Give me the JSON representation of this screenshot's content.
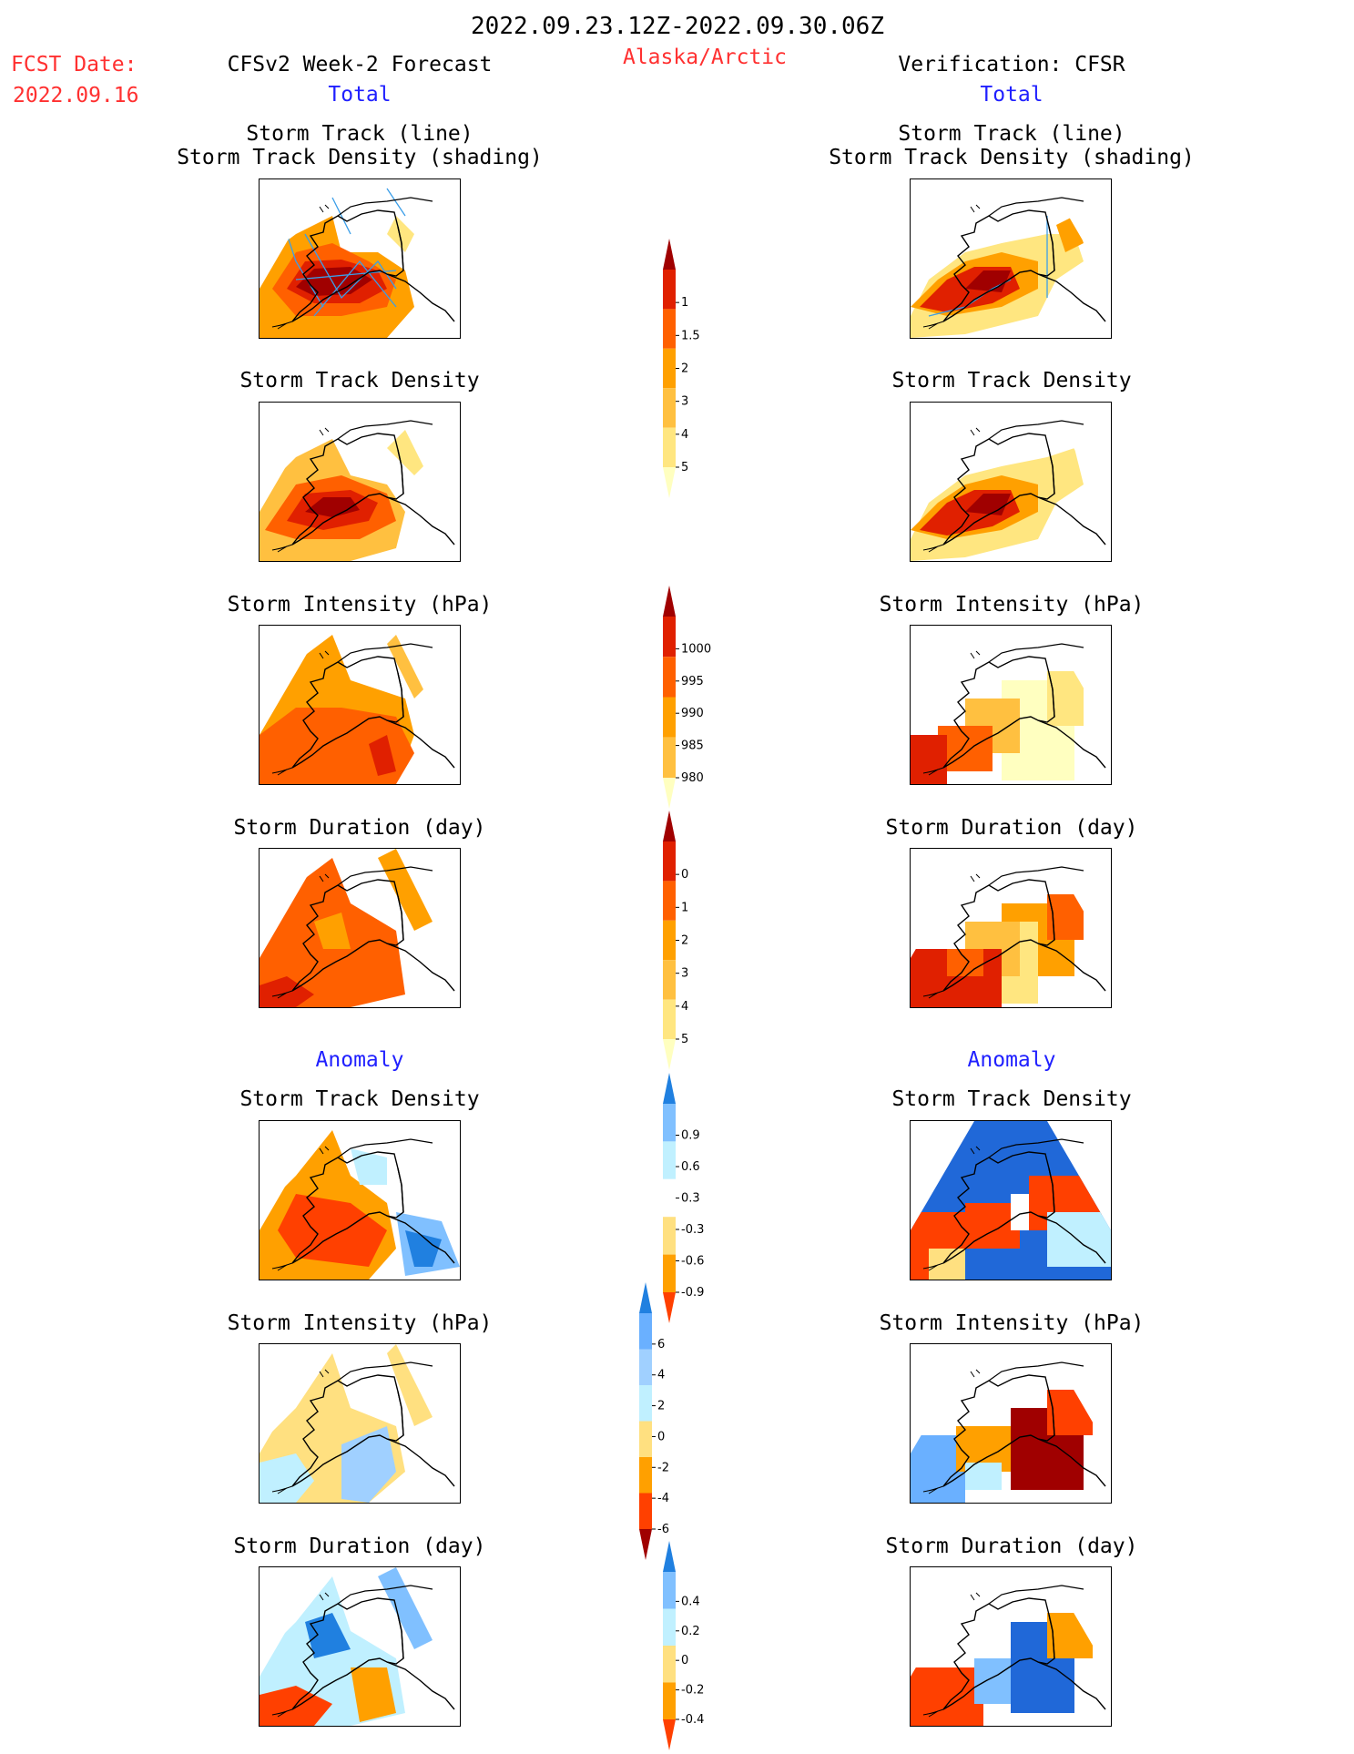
{
  "header": {
    "period": "2022.09.23.12Z-2022.09.30.06Z",
    "fcst_date_label": "FCST Date:",
    "fcst_date_value": "2022.09.16",
    "region": "Alaska/Arctic",
    "left_title": "CFSv2 Week-2 Forecast",
    "right_title": "Verification: CFSR",
    "left_sub": "Total",
    "right_sub": "Total"
  },
  "sections": {
    "anomaly_left": "Anomaly",
    "anomaly_right": "Anomaly"
  },
  "panel_titles": {
    "track_line": "Storm Track (line)",
    "track_shading": "Storm Track Density (shading)",
    "density": "Storm Track Density",
    "intensity": "Storm Intensity (hPa)",
    "duration": "Storm Duration (day)"
  },
  "colors": {
    "header_red": "#ff3030",
    "header_blue": "#2020ff",
    "track_line": "#3b9ee8",
    "coast": "#000000"
  },
  "chart_data": [
    {
      "type": "heatmap",
      "title": "Storm Track (line) / Storm Track Density (shading)",
      "panels": [
        "CFSv2 Week-2 Forecast",
        "Verification: CFSR"
      ],
      "colorbar": {
        "ticks": [
          "1",
          "1.5",
          "2",
          "3",
          "4",
          "5"
        ],
        "colors": [
          "#ffffc0",
          "#ffe680",
          "#ffc040",
          "#ffa000",
          "#ff6000",
          "#e02000",
          "#a00000"
        ]
      }
    },
    {
      "type": "heatmap",
      "title": "Storm Track Density",
      "panels": [
        "CFSv2 Week-2 Forecast",
        "Verification: CFSR"
      ],
      "colorbar": {
        "ticks": [
          "1",
          "1.5",
          "2",
          "3",
          "4",
          "5"
        ]
      }
    },
    {
      "type": "heatmap",
      "title": "Storm Intensity (hPa)",
      "panels": [
        "CFSv2 Week-2 Forecast",
        "Verification: CFSR"
      ],
      "colorbar": {
        "ticks": [
          "1000",
          "995",
          "990",
          "985",
          "980"
        ],
        "colors": [
          "#ffffc0",
          "#ffc040",
          "#ffa000",
          "#ff6000",
          "#e02000",
          "#a00000"
        ]
      }
    },
    {
      "type": "heatmap",
      "title": "Storm Duration (day)",
      "panels": [
        "CFSv2 Week-2 Forecast",
        "Verification: CFSR"
      ],
      "colorbar": {
        "ticks": [
          "0",
          "1",
          "2",
          "3",
          "4",
          "5"
        ],
        "colors": [
          "#ffffc0",
          "#ffe680",
          "#ffc040",
          "#ffa000",
          "#ff6000",
          "#e02000",
          "#a00000"
        ]
      }
    },
    {
      "type": "heatmap",
      "title": "Anomaly Storm Track Density",
      "panels": [
        "CFSv2 Week-2 Forecast",
        "Verification: CFSR"
      ],
      "colorbar": {
        "ticks": [
          "0.9",
          "0.6",
          "0.3",
          "-0.3",
          "-0.6",
          "-0.9"
        ],
        "colors": [
          "#ff4000",
          "#ffa000",
          "#ffe080",
          "#ffffff",
          "#c0f0ff",
          "#80c0ff",
          "#2080e0"
        ]
      }
    },
    {
      "type": "heatmap",
      "title": "Anomaly Storm Intensity (hPa)",
      "panels": [
        "CFSv2 Week-2 Forecast",
        "Verification: CFSR"
      ],
      "colorbar": {
        "ticks": [
          "6",
          "4",
          "2",
          "0",
          "-2",
          "-4",
          "-6"
        ],
        "colors": [
          "#a00000",
          "#ff4000",
          "#ffa000",
          "#ffe080",
          "#c0f0ff",
          "#a0d0ff",
          "#6ab0ff",
          "#2080e0"
        ]
      }
    },
    {
      "type": "heatmap",
      "title": "Anomaly Storm Duration (day)",
      "panels": [
        "CFSv2 Week-2 Forecast",
        "Verification: CFSR"
      ],
      "colorbar": {
        "ticks": [
          "0.4",
          "0.2",
          "0",
          "-0.2",
          "-0.4"
        ],
        "colors": [
          "#ff4000",
          "#ffa000",
          "#ffe080",
          "#c0f0ff",
          "#80c0ff",
          "#2080e0"
        ]
      }
    }
  ]
}
